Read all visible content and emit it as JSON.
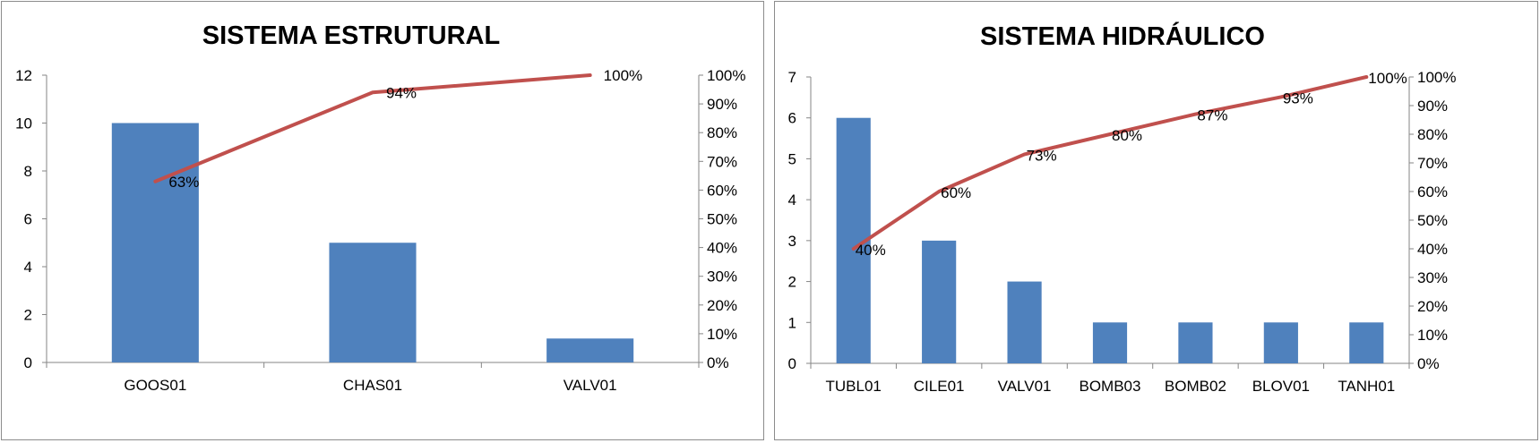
{
  "chart_data": [
    {
      "type": "bar",
      "title": "SISTEMA ESTRUTURAL",
      "categories": [
        "GOOS01",
        "CHAS01",
        "VALV01"
      ],
      "values": [
        10,
        5,
        1
      ],
      "ylim": [
        0,
        12
      ],
      "y_ticks": [
        "0",
        "2",
        "4",
        "6",
        "8",
        "10",
        "12"
      ],
      "y2lim": [
        0,
        100
      ],
      "y2_ticks": [
        "0%",
        "10%",
        "20%",
        "30%",
        "40%",
        "50%",
        "60%",
        "70%",
        "80%",
        "90%",
        "100%"
      ],
      "cumulative_pct": [
        63,
        94,
        100
      ],
      "cumulative_labels": [
        "63%",
        "94%",
        "100%"
      ],
      "grid": false,
      "colors": {
        "bar": "#4f81bd",
        "line": "#c0504d"
      }
    },
    {
      "type": "bar",
      "title": "SISTEMA HIDRÁULICO",
      "categories": [
        "TUBL01",
        "CILE01",
        "VALV01",
        "BOMB03",
        "BOMB02",
        "BLOV01",
        "TANH01"
      ],
      "values": [
        6,
        3,
        2,
        1,
        1,
        1,
        1
      ],
      "ylim": [
        0,
        7
      ],
      "y_ticks": [
        "0",
        "1",
        "2",
        "3",
        "4",
        "5",
        "6",
        "7"
      ],
      "y2lim": [
        0,
        100
      ],
      "y2_ticks": [
        "0%",
        "10%",
        "20%",
        "30%",
        "40%",
        "50%",
        "60%",
        "70%",
        "80%",
        "90%",
        "100%"
      ],
      "cumulative_pct": [
        40,
        60,
        73,
        80,
        87,
        93,
        100
      ],
      "cumulative_labels": [
        "40%",
        "60%",
        "73%",
        "80%",
        "87%",
        "93%",
        "100%"
      ],
      "grid": false,
      "colors": {
        "bar": "#4f81bd",
        "line": "#c0504d"
      }
    }
  ]
}
